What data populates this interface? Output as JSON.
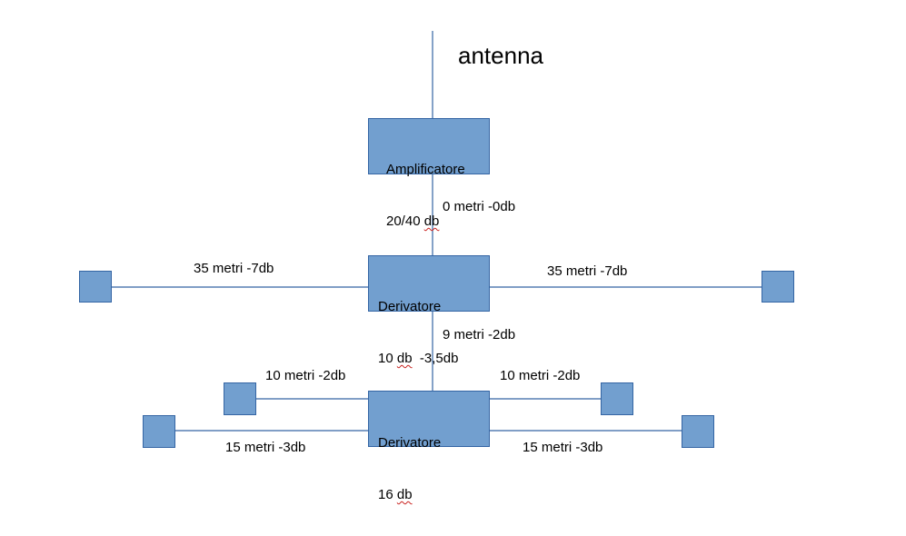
{
  "title": "antenna",
  "colors": {
    "box_fill": "#729fcf",
    "box_border": "#3465a4",
    "line": "#3465a4",
    "spellcheck": "#c9211e"
  },
  "nodes": {
    "amp": {
      "name": "Amplificatore",
      "spec_value": "20/40",
      "spec_unit": "db",
      "spec_extra": ""
    },
    "der1": {
      "name": "Derivatore",
      "spec_value": "10",
      "spec_unit": "db",
      "spec_extra": "  -3,5db"
    },
    "der2": {
      "name": "Derivatore",
      "spec_value": "16",
      "spec_unit": "db",
      "spec_extra": ""
    }
  },
  "cables": {
    "amp_der1": "0 metri -0db",
    "der1_left": "35 metri -7db",
    "der1_right": "35 metri -7db",
    "der1_der2": "9 metri -2db",
    "der2_upper_left": "10 metri -2db",
    "der2_upper_right": "10 metri -2db",
    "der2_lower_left": "15 metri -3db",
    "der2_lower_right": "15 metri -3db"
  }
}
